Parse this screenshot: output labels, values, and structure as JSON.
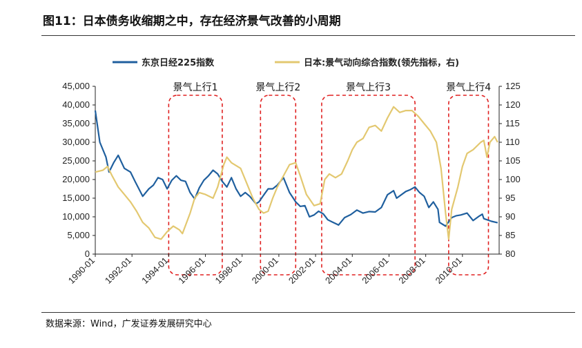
{
  "header": {
    "title": "图11：日本债务收缩期之中，存在经济景气改善的小周期"
  },
  "footer": {
    "source": "数据来源：Wind，广发证券发展研究中心"
  },
  "colors": {
    "nikkei": "#1f5f9e",
    "composite": "#e3c870",
    "period_box": "#e02020"
  },
  "chart_data": {
    "type": "line",
    "legend": [
      "东京日经225指数",
      "日本:景气动向综合指数(领先指标，右)"
    ],
    "x_axis": {
      "range": [
        "1990-01",
        "2011-12"
      ],
      "tick_labels": [
        "1990-01",
        "1992-01",
        "1994-01",
        "1996-01",
        "1998-01",
        "2000-01",
        "2002-01",
        "2004-01",
        "2006-01",
        "2008-01",
        "2010-01"
      ]
    },
    "y_left": {
      "range": [
        0,
        45000
      ],
      "tick_labels": [
        "0",
        "5,000",
        "10,000",
        "15,000",
        "20,000",
        "25,000",
        "30,000",
        "35,000",
        "40,000",
        "45,000"
      ]
    },
    "y_right": {
      "range": [
        80,
        125
      ],
      "tick_labels": [
        "80",
        "85",
        "90",
        "95",
        "100",
        "105",
        "110",
        "115",
        "120",
        "125"
      ]
    },
    "periods": [
      {
        "label": "景气上行1",
        "start": "1994-01",
        "end": "1996-12"
      },
      {
        "label": "景气上行2",
        "start": "1999-01",
        "end": "2000-12"
      },
      {
        "label": "景气上行3",
        "start": "2002-05",
        "end": "2007-06"
      },
      {
        "label": "景气上行4",
        "start": "2009-04",
        "end": "2011-06"
      }
    ],
    "series": [
      {
        "name": "东京日经225指数",
        "axis": "left",
        "points": [
          [
            "1990-01",
            38500
          ],
          [
            "1990-04",
            30000
          ],
          [
            "1990-08",
            26000
          ],
          [
            "1990-10",
            22000
          ],
          [
            "1991-01",
            24500
          ],
          [
            "1991-04",
            26500
          ],
          [
            "1991-08",
            23000
          ],
          [
            "1991-12",
            22000
          ],
          [
            "1992-03",
            19500
          ],
          [
            "1992-08",
            15500
          ],
          [
            "1992-12",
            17500
          ],
          [
            "1993-03",
            18500
          ],
          [
            "1993-06",
            20500
          ],
          [
            "1993-09",
            20000
          ],
          [
            "1993-12",
            17500
          ],
          [
            "1994-03",
            19800
          ],
          [
            "1994-06",
            21000
          ],
          [
            "1994-09",
            19800
          ],
          [
            "1994-12",
            19500
          ],
          [
            "1995-03",
            16500
          ],
          [
            "1995-06",
            14800
          ],
          [
            "1995-09",
            17800
          ],
          [
            "1995-12",
            19800
          ],
          [
            "1996-03",
            21000
          ],
          [
            "1996-06",
            22500
          ],
          [
            "1996-09",
            21500
          ],
          [
            "1996-12",
            19500
          ],
          [
            "1997-03",
            18000
          ],
          [
            "1997-06",
            20500
          ],
          [
            "1997-09",
            17500
          ],
          [
            "1997-12",
            15500
          ],
          [
            "1998-03",
            16500
          ],
          [
            "1998-06",
            15500
          ],
          [
            "1998-10",
            13500
          ],
          [
            "1998-12",
            14000
          ],
          [
            "1999-03",
            15800
          ],
          [
            "1999-06",
            17500
          ],
          [
            "1999-09",
            17500
          ],
          [
            "1999-12",
            18500
          ],
          [
            "2000-04",
            20500
          ],
          [
            "2000-08",
            16500
          ],
          [
            "2000-12",
            14000
          ],
          [
            "2001-03",
            12800
          ],
          [
            "2001-06",
            13000
          ],
          [
            "2001-09",
            10000
          ],
          [
            "2001-12",
            10500
          ],
          [
            "2002-03",
            11500
          ],
          [
            "2002-06",
            10800
          ],
          [
            "2002-09",
            9200
          ],
          [
            "2002-12",
            8600
          ],
          [
            "2003-03",
            8000
          ],
          [
            "2003-04",
            7800
          ],
          [
            "2003-08",
            9800
          ],
          [
            "2003-12",
            10600
          ],
          [
            "2004-04",
            11800
          ],
          [
            "2004-08",
            11000
          ],
          [
            "2004-12",
            11400
          ],
          [
            "2005-04",
            11300
          ],
          [
            "2005-08",
            12500
          ],
          [
            "2005-12",
            15900
          ],
          [
            "2006-04",
            17000
          ],
          [
            "2006-06",
            15000
          ],
          [
            "2006-12",
            16800
          ],
          [
            "2007-03",
            17300
          ],
          [
            "2007-06",
            18000
          ],
          [
            "2007-09",
            16500
          ],
          [
            "2007-12",
            15500
          ],
          [
            "2008-03",
            12500
          ],
          [
            "2008-06",
            14000
          ],
          [
            "2008-09",
            12000
          ],
          [
            "2008-10",
            8500
          ],
          [
            "2009-02",
            7500
          ],
          [
            "2009-06",
            9800
          ],
          [
            "2009-09",
            10300
          ],
          [
            "2009-12",
            10500
          ],
          [
            "2010-04",
            11000
          ],
          [
            "2010-08",
            9000
          ],
          [
            "2010-12",
            10200
          ],
          [
            "2011-02",
            10700
          ],
          [
            "2011-03",
            9500
          ],
          [
            "2011-08",
            8800
          ],
          [
            "2011-12",
            8400
          ]
        ]
      },
      {
        "name": "日本:景气动向综合指数(领先指标，右)",
        "axis": "right",
        "points": [
          [
            "1990-01",
            102
          ],
          [
            "1990-06",
            102.5
          ],
          [
            "1990-09",
            103.5
          ],
          [
            "1990-12",
            101
          ],
          [
            "1991-04",
            98
          ],
          [
            "1991-08",
            96
          ],
          [
            "1991-12",
            94
          ],
          [
            "1992-04",
            91.5
          ],
          [
            "1992-08",
            88.5
          ],
          [
            "1992-12",
            87
          ],
          [
            "1993-04",
            84.5
          ],
          [
            "1993-08",
            84
          ],
          [
            "1993-12",
            86
          ],
          [
            "1994-04",
            87.5
          ],
          [
            "1994-08",
            86.5
          ],
          [
            "1994-10",
            85.5
          ],
          [
            "1995-03",
            91
          ],
          [
            "1995-06",
            95
          ],
          [
            "1995-09",
            96.5
          ],
          [
            "1996-01",
            96
          ],
          [
            "1996-06",
            95
          ],
          [
            "1996-09",
            98
          ],
          [
            "1997-01",
            104
          ],
          [
            "1997-03",
            106
          ],
          [
            "1997-06",
            104.5
          ],
          [
            "1997-12",
            103
          ],
          [
            "1998-04",
            99
          ],
          [
            "1998-08",
            95
          ],
          [
            "1998-12",
            92
          ],
          [
            "1999-03",
            91
          ],
          [
            "1999-06",
            91.5
          ],
          [
            "1999-09",
            95
          ],
          [
            "1999-12",
            98
          ],
          [
            "2000-04",
            101
          ],
          [
            "2000-08",
            104
          ],
          [
            "2000-12",
            104.5
          ],
          [
            "2001-03",
            101
          ],
          [
            "2001-07",
            96
          ],
          [
            "2001-12",
            93
          ],
          [
            "2002-04",
            93.5
          ],
          [
            "2002-07",
            100
          ],
          [
            "2002-10",
            101.5
          ],
          [
            "2003-02",
            100.5
          ],
          [
            "2003-06",
            101.5
          ],
          [
            "2003-10",
            105
          ],
          [
            "2004-01",
            108
          ],
          [
            "2004-04",
            110
          ],
          [
            "2004-08",
            111
          ],
          [
            "2004-12",
            114
          ],
          [
            "2005-04",
            114.5
          ],
          [
            "2005-08",
            113
          ],
          [
            "2005-12",
            116.5
          ],
          [
            "2006-04",
            119.5
          ],
          [
            "2006-08",
            118
          ],
          [
            "2006-12",
            118.5
          ],
          [
            "2007-04",
            118.5
          ],
          [
            "2007-08",
            117
          ],
          [
            "2007-12",
            115
          ],
          [
            "2008-04",
            113
          ],
          [
            "2008-08",
            110
          ],
          [
            "2008-11",
            103
          ],
          [
            "2009-02",
            91
          ],
          [
            "2009-04",
            84
          ],
          [
            "2009-06",
            92
          ],
          [
            "2009-10",
            98
          ],
          [
            "2010-01",
            103.5
          ],
          [
            "2010-04",
            107
          ],
          [
            "2010-08",
            108
          ],
          [
            "2011-01",
            110
          ],
          [
            "2011-03",
            110.5
          ],
          [
            "2011-05",
            106
          ],
          [
            "2011-07",
            110
          ],
          [
            "2011-10",
            111.5
          ],
          [
            "2011-12",
            110
          ]
        ]
      }
    ]
  }
}
